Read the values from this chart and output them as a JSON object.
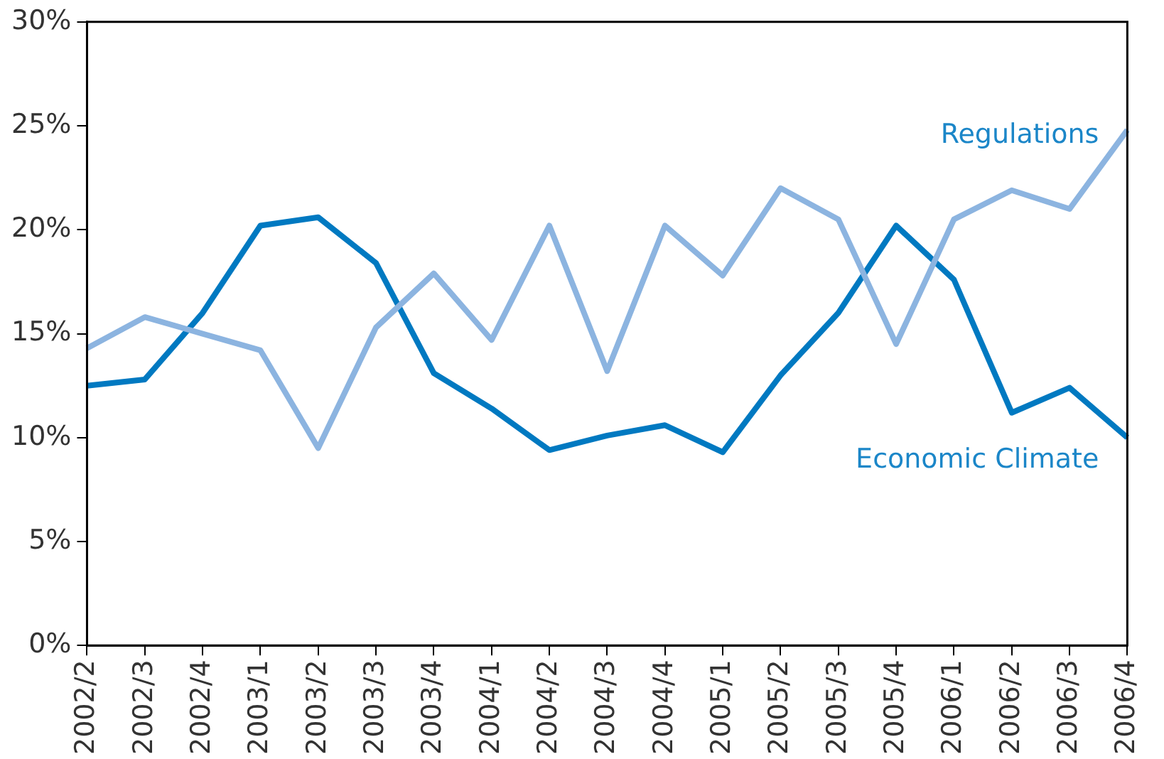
{
  "chart_data": {
    "type": "line",
    "categories": [
      "2002/2",
      "2002/3",
      "2002/4",
      "2003/1",
      "2003/2",
      "2003/3",
      "2003/4",
      "2004/1",
      "2004/2",
      "2004/3",
      "2004/4",
      "2005/1",
      "2005/2",
      "2005/3",
      "2005/4",
      "2006/1",
      "2006/2",
      "2006/3",
      "2006/4"
    ],
    "series": [
      {
        "name": "Regulations",
        "color": "#8cb4e0",
        "values": [
          14.3,
          15.8,
          15.0,
          14.2,
          9.5,
          15.3,
          17.9,
          14.7,
          20.2,
          13.2,
          20.2,
          17.8,
          22.0,
          20.5,
          14.5,
          20.5,
          21.9,
          21.0,
          24.8
        ]
      },
      {
        "name": "Economic Climate",
        "color": "#0079c1",
        "values": [
          12.5,
          12.8,
          16.0,
          20.2,
          20.6,
          18.4,
          13.1,
          11.4,
          9.4,
          10.1,
          10.6,
          9.3,
          13.0,
          16.0,
          20.2,
          17.6,
          11.2,
          12.4,
          10.0
        ]
      }
    ],
    "ylim": [
      0,
      30
    ],
    "yticks": [
      {
        "value": 0,
        "label": "0%"
      },
      {
        "value": 5,
        "label": "5%"
      },
      {
        "value": 10,
        "label": "10%"
      },
      {
        "value": 15,
        "label": "15%"
      },
      {
        "value": 20,
        "label": "20%"
      },
      {
        "value": 25,
        "label": "25%"
      },
      {
        "value": 30,
        "label": "30%"
      }
    ],
    "grid": false,
    "legend": false,
    "marker": "none",
    "line_style": "solid"
  }
}
